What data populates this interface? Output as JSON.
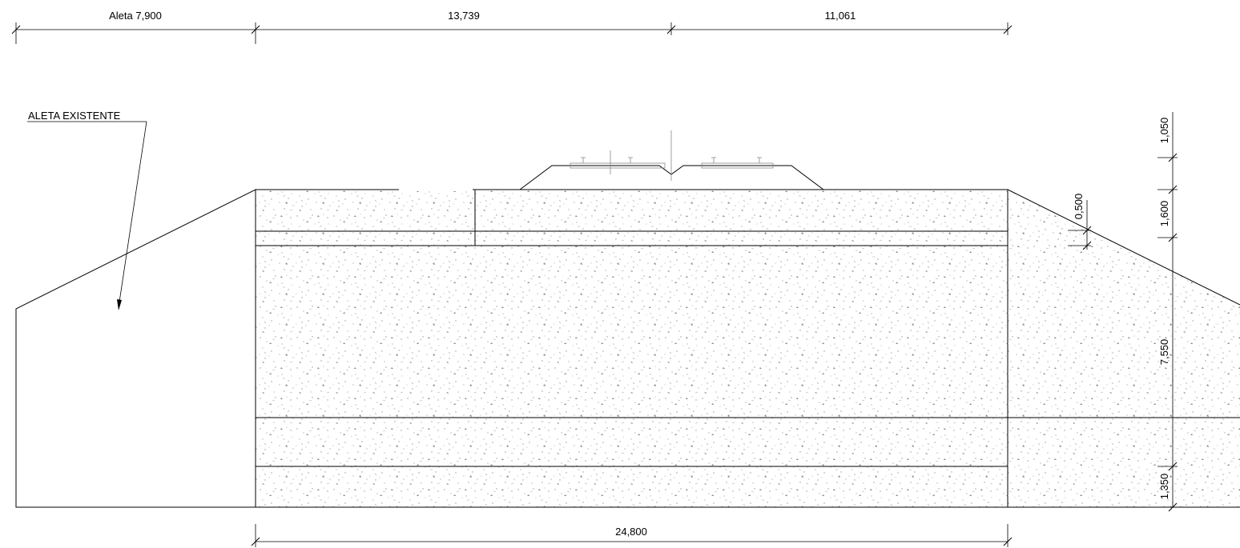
{
  "drawing": {
    "dim_top": [
      "Aleta 7,900",
      "13,739",
      "11,061"
    ],
    "dim_bottom": "24,800",
    "callout_label": "ALETA EXISTENTE",
    "dim_right": [
      "1,050",
      "1,600",
      "7,550",
      "1,350"
    ],
    "dim_slope": "0,500"
  },
  "colors": {
    "line": "#000000",
    "fill_stipple": "#9a9a9a",
    "rail": "#777777"
  }
}
